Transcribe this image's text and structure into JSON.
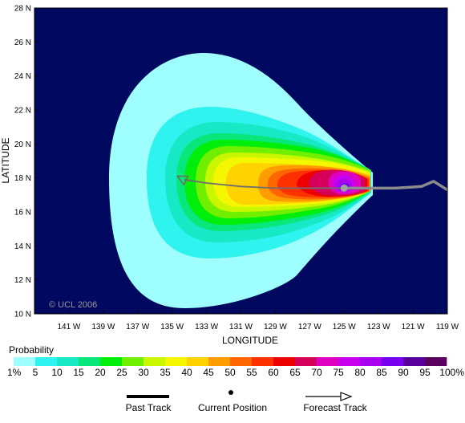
{
  "map": {
    "background_color": "#00095f",
    "copyright": "© UCL 2006",
    "axes": {
      "x_title": "LONGITUDE",
      "y_title": "LATITUDE",
      "lon_range": [
        -143,
        -119
      ],
      "lat_range": [
        10,
        28
      ],
      "lat_ticks": [
        "10 N",
        "12 N",
        "14 N",
        "16 N",
        "18 N",
        "20 N",
        "22 N",
        "24 N",
        "26 N",
        "28 N"
      ],
      "lon_ticks": [
        "141 W",
        "139 W",
        "137 W",
        "135 W",
        "133 W",
        "131 W",
        "129 W",
        "127 W",
        "125 W",
        "123 W",
        "121 W",
        "119 W"
      ]
    },
    "current_position": {
      "lon": -125.0,
      "lat": 17.4
    },
    "past_track": [
      [
        -119,
        17.3
      ],
      [
        -119.8,
        17.8
      ],
      [
        -120.5,
        17.5
      ],
      [
        -122,
        17.4
      ],
      [
        -124,
        17.4
      ],
      [
        -125,
        17.4
      ]
    ],
    "forecast_track": [
      [
        -125,
        17.4
      ],
      [
        -127,
        17.4
      ],
      [
        -129,
        17.4
      ],
      [
        -131,
        17.5
      ],
      [
        -133,
        17.7
      ],
      [
        -134.3,
        17.9
      ],
      [
        -134.7,
        18.1
      ]
    ]
  },
  "legend": {
    "title": "Probability",
    "labels": [
      "1%",
      "5",
      "10",
      "15",
      "20",
      "25",
      "30",
      "35",
      "40",
      "45",
      "50",
      "55",
      "60",
      "65",
      "70",
      "75",
      "80",
      "85",
      "90",
      "95",
      "100%"
    ],
    "colors": [
      "#9ffffe",
      "#2ff3ef",
      "#17e9c6",
      "#07e77a",
      "#00ee0a",
      "#70f000",
      "#c9f700",
      "#f5f700",
      "#ffd200",
      "#ff9d00",
      "#ff6600",
      "#ff3000",
      "#ee0000",
      "#d4005a",
      "#de00c3",
      "#c700ee",
      "#a800f0",
      "#7800f0",
      "#58009d",
      "#5a005e"
    ],
    "items": {
      "past_track": "Past Track",
      "current_position": "Current Position",
      "forecast_track": "Forecast Track"
    }
  }
}
